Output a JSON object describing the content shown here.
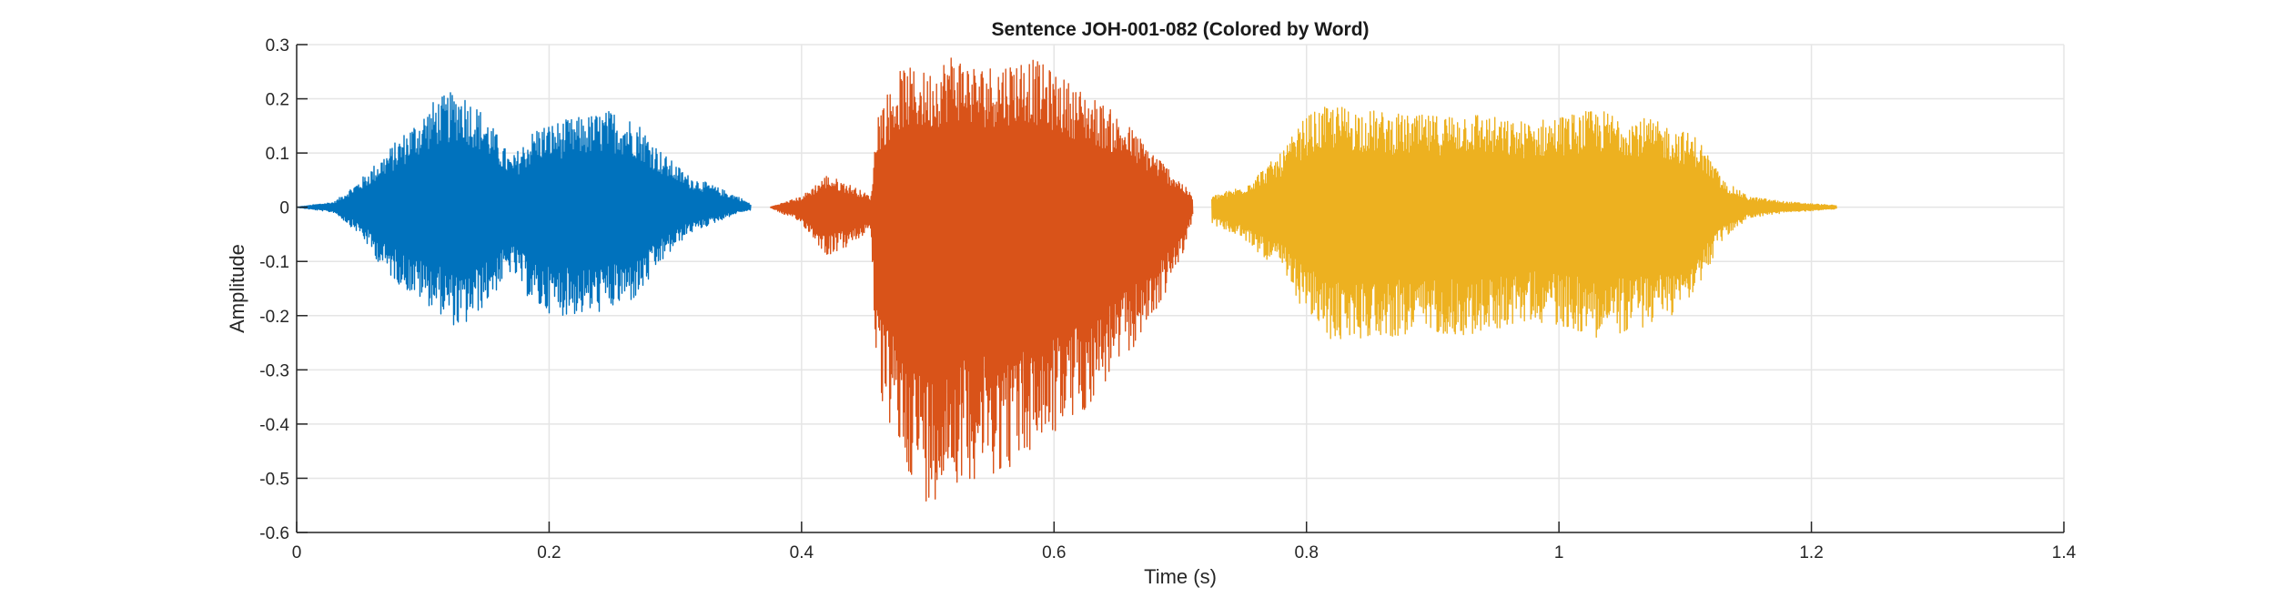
{
  "chart_data": {
    "type": "line",
    "title": "Sentence JOH-001-082 (Colored by Word)",
    "xlabel": "Time (s)",
    "ylabel": "Amplitude",
    "xlim": [
      0,
      1.4
    ],
    "ylim": [
      -0.6,
      0.3
    ],
    "xticks": [
      0,
      0.2,
      0.4,
      0.6,
      0.8,
      1,
      1.2,
      1.4
    ],
    "xtick_labels": [
      "0",
      "0.2",
      "0.4",
      "0.6",
      "0.8",
      "1",
      "1.2",
      "1.4"
    ],
    "yticks": [
      0.3,
      0.2,
      0.1,
      0,
      -0.1,
      -0.2,
      -0.3,
      -0.4,
      -0.5,
      -0.6
    ],
    "ytick_labels": [
      "0.3",
      "0.2",
      "0.1",
      "0",
      "-0.1",
      "-0.2",
      "-0.3",
      "-0.4",
      "-0.5",
      "-0.6"
    ],
    "grid": true,
    "series": [
      {
        "color": "#0072BD",
        "t_range": [
          0,
          0.36
        ],
        "envelope": [
          [
            0.0,
            0.0,
            0.0
          ],
          [
            0.03,
            0.01,
            -0.01
          ],
          [
            0.05,
            0.05,
            -0.05
          ],
          [
            0.07,
            0.1,
            -0.12
          ],
          [
            0.09,
            0.15,
            -0.16
          ],
          [
            0.11,
            0.2,
            -0.19
          ],
          [
            0.13,
            0.22,
            -0.23
          ],
          [
            0.15,
            0.17,
            -0.18
          ],
          [
            0.17,
            0.09,
            -0.12
          ],
          [
            0.19,
            0.15,
            -0.19
          ],
          [
            0.21,
            0.16,
            -0.2
          ],
          [
            0.23,
            0.17,
            -0.2
          ],
          [
            0.25,
            0.18,
            -0.19
          ],
          [
            0.27,
            0.16,
            -0.17
          ],
          [
            0.29,
            0.1,
            -0.1
          ],
          [
            0.31,
            0.06,
            -0.05
          ],
          [
            0.33,
            0.04,
            -0.03
          ],
          [
            0.35,
            0.02,
            -0.01
          ],
          [
            0.36,
            0.005,
            -0.005
          ]
        ]
      },
      {
        "color": "#D95319",
        "t_range": [
          0.375,
          0.71
        ],
        "envelope": [
          [
            0.375,
            0.0,
            0.0
          ],
          [
            0.4,
            0.02,
            -0.03
          ],
          [
            0.42,
            0.06,
            -0.09
          ],
          [
            0.44,
            0.04,
            -0.07
          ],
          [
            0.455,
            0.02,
            -0.04
          ],
          [
            0.46,
            0.18,
            -0.35
          ],
          [
            0.48,
            0.26,
            -0.47
          ],
          [
            0.5,
            0.25,
            -0.55
          ],
          [
            0.52,
            0.29,
            -0.51
          ],
          [
            0.54,
            0.26,
            -0.5
          ],
          [
            0.56,
            0.27,
            -0.49
          ],
          [
            0.58,
            0.28,
            -0.46
          ],
          [
            0.6,
            0.25,
            -0.42
          ],
          [
            0.62,
            0.22,
            -0.39
          ],
          [
            0.64,
            0.19,
            -0.33
          ],
          [
            0.66,
            0.15,
            -0.27
          ],
          [
            0.68,
            0.1,
            -0.2
          ],
          [
            0.7,
            0.05,
            -0.1
          ],
          [
            0.71,
            0.02,
            -0.02
          ]
        ]
      },
      {
        "color": "#EDB120",
        "t_range": [
          0.725,
          1.22
        ],
        "envelope": [
          [
            0.725,
            0.02,
            -0.03
          ],
          [
            0.75,
            0.04,
            -0.06
          ],
          [
            0.78,
            0.1,
            -0.12
          ],
          [
            0.8,
            0.17,
            -0.2
          ],
          [
            0.82,
            0.19,
            -0.25
          ],
          [
            0.85,
            0.18,
            -0.24
          ],
          [
            0.88,
            0.17,
            -0.24
          ],
          [
            0.9,
            0.17,
            -0.23
          ],
          [
            0.93,
            0.18,
            -0.24
          ],
          [
            0.96,
            0.16,
            -0.22
          ],
          [
            0.98,
            0.16,
            -0.21
          ],
          [
            1.0,
            0.17,
            -0.22
          ],
          [
            1.03,
            0.18,
            -0.24
          ],
          [
            1.06,
            0.17,
            -0.23
          ],
          [
            1.09,
            0.15,
            -0.2
          ],
          [
            1.11,
            0.13,
            -0.15
          ],
          [
            1.13,
            0.05,
            -0.06
          ],
          [
            1.15,
            0.02,
            -0.02
          ],
          [
            1.18,
            0.01,
            -0.01
          ],
          [
            1.22,
            0.003,
            -0.003
          ]
        ]
      }
    ]
  }
}
